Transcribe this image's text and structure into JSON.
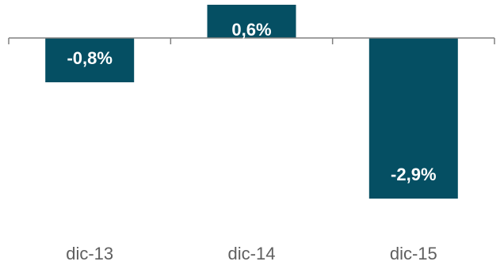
{
  "chart_data": {
    "type": "bar",
    "categories": [
      "dic-13",
      "dic-14",
      "dic-15"
    ],
    "values": [
      -0.8,
      0.6,
      -2.9
    ],
    "value_labels": [
      "-0,8%",
      "0,6%",
      "-2,9%"
    ],
    "title": "",
    "xlabel": "",
    "ylabel": "",
    "ylim": [
      -3.0,
      0.6
    ],
    "grid": false,
    "legend": "none",
    "colors": {
      "bar": "#054F63",
      "label_outside": "#054F63",
      "label_inside": "#ffffff",
      "axis": "#808080",
      "category_text": "#5f5f5f"
    }
  }
}
